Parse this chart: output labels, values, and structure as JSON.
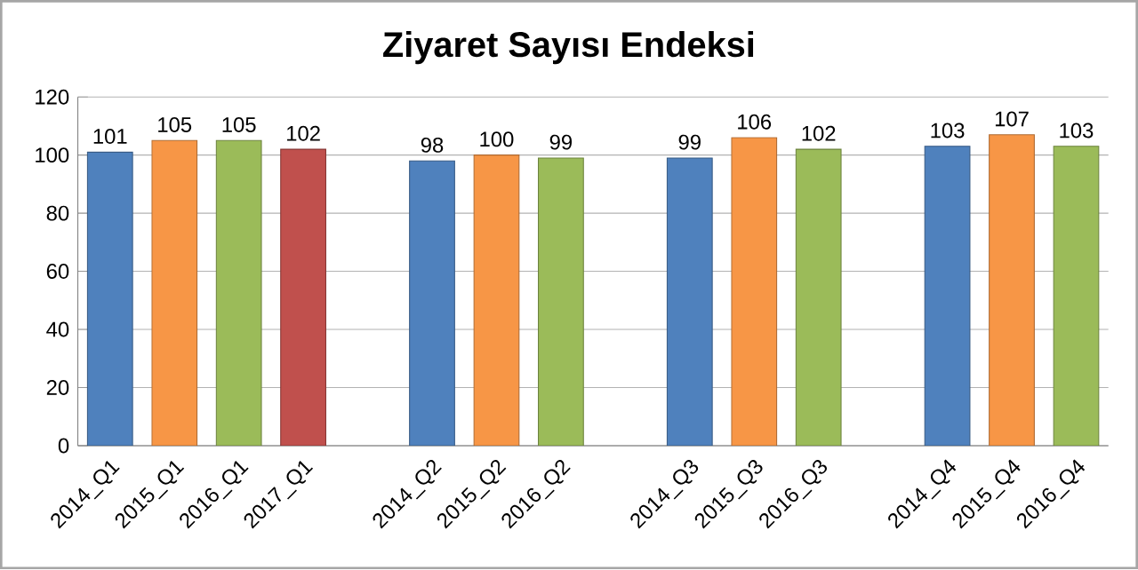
{
  "chart_data": {
    "type": "bar",
    "title": "Ziyaret Sayısı Endeksi",
    "categories": [
      "2014_Q1",
      "2015_Q1",
      "2016_Q1",
      "2017_Q1",
      null,
      "2014_Q2",
      "2015_Q2",
      "2016_Q2",
      null,
      "2014_Q3",
      "2015_Q3",
      "2016_Q3",
      null,
      "2014_Q4",
      "2015_Q4",
      "2016_Q4"
    ],
    "values": [
      101,
      105,
      105,
      102,
      null,
      98,
      100,
      99,
      null,
      99,
      106,
      102,
      null,
      103,
      107,
      103
    ],
    "colors": [
      "#4f81bd",
      "#f79646",
      "#9bbb59",
      "#c0504d",
      "#4f81bd",
      "#4f81bd",
      "#f79646",
      "#9bbb59",
      "#4f81bd",
      "#4f81bd",
      "#f79646",
      "#9bbb59",
      "#4f81bd",
      "#4f81bd",
      "#f79646",
      "#9bbb59"
    ],
    "ylim": [
      0,
      120
    ],
    "yticks": [
      0,
      20,
      40,
      60,
      80,
      100,
      120
    ],
    "grid": "y",
    "data_labels": true
  }
}
